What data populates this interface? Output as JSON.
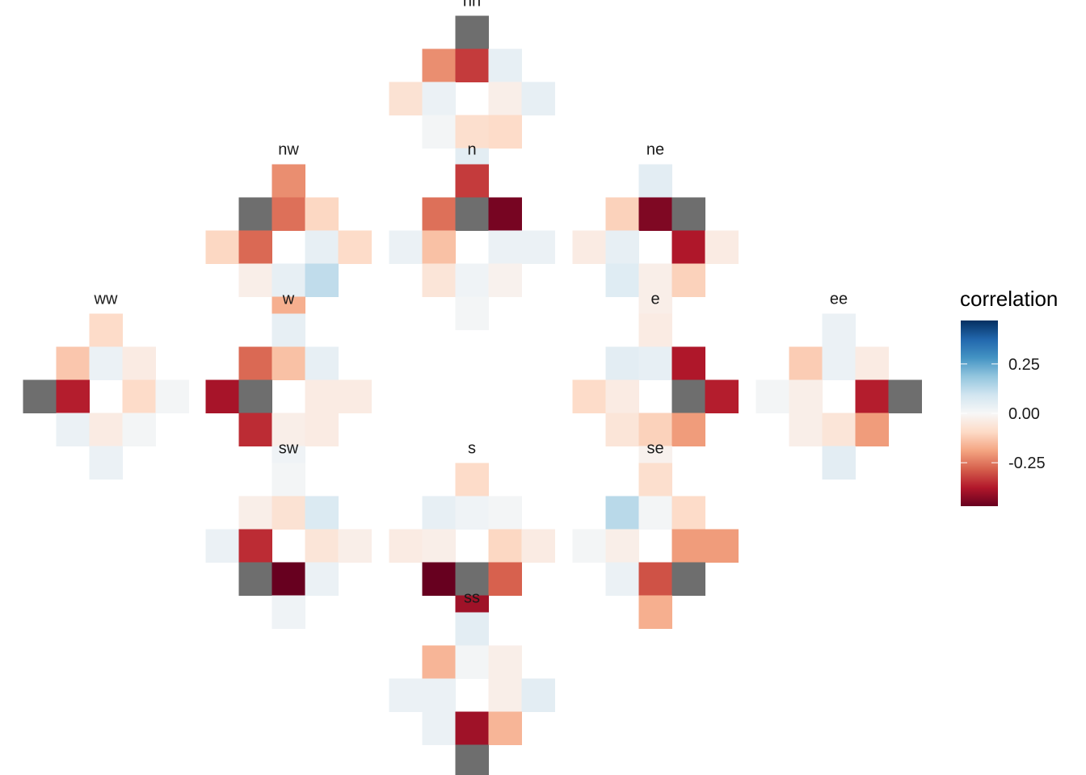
{
  "chart_data": {
    "type": "heatmap",
    "grid": "off",
    "legend": {
      "title": "correlation",
      "placement": "right",
      "range": [
        -0.47,
        0.47
      ],
      "ticks": [
        0.25,
        0.0,
        -0.25
      ],
      "tick_labels": [
        "0.25",
        "0.00",
        "-0.25"
      ],
      "palette": [
        "#67001f",
        "#b2182b",
        "#d6604d",
        "#f4a582",
        "#fddbc7",
        "#f7f7f7",
        "#d1e5f0",
        "#92c5de",
        "#4393c3",
        "#2166ac",
        "#053061"
      ]
    },
    "reference_color": "#6e6e6e",
    "panels": [
      {
        "name": "nn",
        "cells": [
          [
            0,
            -2,
            "ref"
          ],
          [
            -1,
            -1,
            -0.22
          ],
          [
            0,
            -1,
            -0.33
          ],
          [
            1,
            -1,
            0.04
          ],
          [
            -2,
            0,
            -0.07
          ],
          [
            -1,
            0,
            0.03
          ],
          [
            1,
            0,
            -0.03
          ],
          [
            2,
            0,
            0.04
          ],
          [
            -1,
            1,
            0.01
          ],
          [
            0,
            1,
            -0.08
          ],
          [
            1,
            1,
            -0.09
          ],
          [
            0,
            2,
            0.05
          ]
        ]
      },
      {
        "name": "nw",
        "cells": [
          [
            0,
            -2,
            -0.22
          ],
          [
            -1,
            -1,
            "ref"
          ],
          [
            0,
            -1,
            -0.26
          ],
          [
            1,
            -1,
            -0.1
          ],
          [
            -2,
            0,
            -0.1
          ],
          [
            -1,
            0,
            -0.27
          ],
          [
            1,
            0,
            0.04
          ],
          [
            2,
            0,
            -0.09
          ],
          [
            -1,
            1,
            -0.03
          ],
          [
            0,
            1,
            0.04
          ],
          [
            1,
            1,
            0.12
          ],
          [
            0,
            2,
            -0.17
          ]
        ]
      },
      {
        "name": "n",
        "cells": [
          [
            0,
            -2,
            -0.33
          ],
          [
            -1,
            -1,
            -0.26
          ],
          [
            0,
            -1,
            "ref"
          ],
          [
            1,
            -1,
            -0.45
          ],
          [
            -2,
            0,
            0.03
          ],
          [
            -1,
            0,
            -0.14
          ],
          [
            1,
            0,
            0.03
          ],
          [
            2,
            0,
            0.03
          ],
          [
            -1,
            1,
            -0.06
          ],
          [
            0,
            1,
            0.02
          ],
          [
            1,
            1,
            -0.02
          ],
          [
            0,
            2,
            0.01
          ]
        ]
      },
      {
        "name": "ne",
        "cells": [
          [
            0,
            -2,
            0.05
          ],
          [
            -1,
            -1,
            -0.11
          ],
          [
            0,
            -1,
            -0.44
          ],
          [
            1,
            -1,
            "ref"
          ],
          [
            -2,
            0,
            -0.04
          ],
          [
            -1,
            0,
            0.04
          ],
          [
            1,
            0,
            -0.38
          ],
          [
            2,
            0,
            -0.04
          ],
          [
            -1,
            1,
            0.06
          ],
          [
            0,
            1,
            -0.03
          ],
          [
            1,
            1,
            -0.11
          ],
          [
            0,
            2,
            -0.03
          ]
        ]
      },
      {
        "name": "ww",
        "cells": [
          [
            0,
            -2,
            -0.09
          ],
          [
            -1,
            -1,
            -0.13
          ],
          [
            0,
            -1,
            0.03
          ],
          [
            1,
            -1,
            -0.04
          ],
          [
            -2,
            0,
            "ref"
          ],
          [
            -1,
            0,
            -0.37
          ],
          [
            1,
            0,
            -0.09
          ],
          [
            2,
            0,
            0.01
          ],
          [
            -1,
            1,
            0.03
          ],
          [
            0,
            1,
            -0.04
          ],
          [
            1,
            1,
            0.01
          ],
          [
            0,
            2,
            0.03
          ]
        ]
      },
      {
        "name": "w",
        "cells": [
          [
            0,
            -2,
            0.04
          ],
          [
            -1,
            -1,
            -0.27
          ],
          [
            0,
            -1,
            -0.14
          ],
          [
            1,
            -1,
            0.04
          ],
          [
            -2,
            0,
            -0.39
          ],
          [
            -1,
            0,
            "ref"
          ],
          [
            1,
            0,
            -0.04
          ],
          [
            2,
            0,
            -0.04
          ],
          [
            -1,
            1,
            -0.35
          ],
          [
            0,
            1,
            -0.03
          ],
          [
            1,
            1,
            -0.04
          ],
          [
            0,
            2,
            0.02
          ]
        ]
      },
      {
        "name": "e",
        "cells": [
          [
            0,
            -2,
            -0.04
          ],
          [
            -1,
            -1,
            0.05
          ],
          [
            0,
            -1,
            0.04
          ],
          [
            1,
            -1,
            -0.38
          ],
          [
            -2,
            0,
            -0.09
          ],
          [
            -1,
            0,
            -0.04
          ],
          [
            1,
            0,
            "ref"
          ],
          [
            2,
            0,
            -0.37
          ],
          [
            -1,
            1,
            -0.06
          ],
          [
            0,
            1,
            -0.11
          ],
          [
            1,
            1,
            -0.2
          ],
          [
            0,
            2,
            -0.02
          ]
        ]
      },
      {
        "name": "ee",
        "cells": [
          [
            0,
            -2,
            0.03
          ],
          [
            -1,
            -1,
            -0.12
          ],
          [
            0,
            -1,
            0.03
          ],
          [
            1,
            -1,
            -0.04
          ],
          [
            -2,
            0,
            0.01
          ],
          [
            -1,
            0,
            -0.03
          ],
          [
            1,
            0,
            -0.37
          ],
          [
            2,
            0,
            "ref"
          ],
          [
            -1,
            1,
            -0.03
          ],
          [
            0,
            1,
            -0.06
          ],
          [
            1,
            1,
            -0.2
          ],
          [
            0,
            2,
            0.05
          ]
        ]
      },
      {
        "name": "sw",
        "cells": [
          [
            0,
            -2,
            0.01
          ],
          [
            -1,
            -1,
            -0.03
          ],
          [
            0,
            -1,
            -0.07
          ],
          [
            1,
            -1,
            0.07
          ],
          [
            -2,
            0,
            0.03
          ],
          [
            -1,
            0,
            -0.35
          ],
          [
            1,
            0,
            -0.06
          ],
          [
            2,
            0,
            -0.03
          ],
          [
            -1,
            1,
            "ref"
          ],
          [
            0,
            1,
            -0.47
          ],
          [
            1,
            1,
            0.03
          ],
          [
            0,
            2,
            0.02
          ]
        ]
      },
      {
        "name": "s",
        "cells": [
          [
            0,
            -2,
            -0.09
          ],
          [
            -1,
            -1,
            0.04
          ],
          [
            0,
            -1,
            0.02
          ],
          [
            1,
            -1,
            0.01
          ],
          [
            -2,
            0,
            -0.04
          ],
          [
            -1,
            0,
            -0.03
          ],
          [
            1,
            0,
            -0.1
          ],
          [
            2,
            0,
            -0.04
          ],
          [
            -1,
            1,
            -0.47
          ],
          [
            0,
            1,
            "ref"
          ],
          [
            1,
            1,
            -0.28
          ],
          [
            0,
            2,
            -0.4
          ]
        ]
      },
      {
        "name": "se",
        "cells": [
          [
            0,
            -2,
            -0.08
          ],
          [
            -1,
            -1,
            0.13
          ],
          [
            0,
            -1,
            0.01
          ],
          [
            1,
            -1,
            -0.09
          ],
          [
            -2,
            0,
            0.01
          ],
          [
            -1,
            0,
            -0.03
          ],
          [
            1,
            0,
            -0.2
          ],
          [
            2,
            0,
            -0.2
          ],
          [
            -1,
            1,
            0.03
          ],
          [
            0,
            1,
            -0.3
          ],
          [
            1,
            1,
            "ref"
          ],
          [
            0,
            2,
            -0.17
          ]
        ]
      },
      {
        "name": "ss",
        "cells": [
          [
            0,
            -2,
            0.05
          ],
          [
            -1,
            -1,
            -0.16
          ],
          [
            0,
            -1,
            0.01
          ],
          [
            1,
            -1,
            -0.03
          ],
          [
            -2,
            0,
            0.03
          ],
          [
            -1,
            0,
            0.03
          ],
          [
            1,
            0,
            -0.03
          ],
          [
            2,
            0,
            0.05
          ],
          [
            -1,
            1,
            0.03
          ],
          [
            0,
            1,
            -0.4
          ],
          [
            1,
            1,
            -0.16
          ],
          [
            0,
            2,
            "ref"
          ]
        ]
      }
    ]
  }
}
